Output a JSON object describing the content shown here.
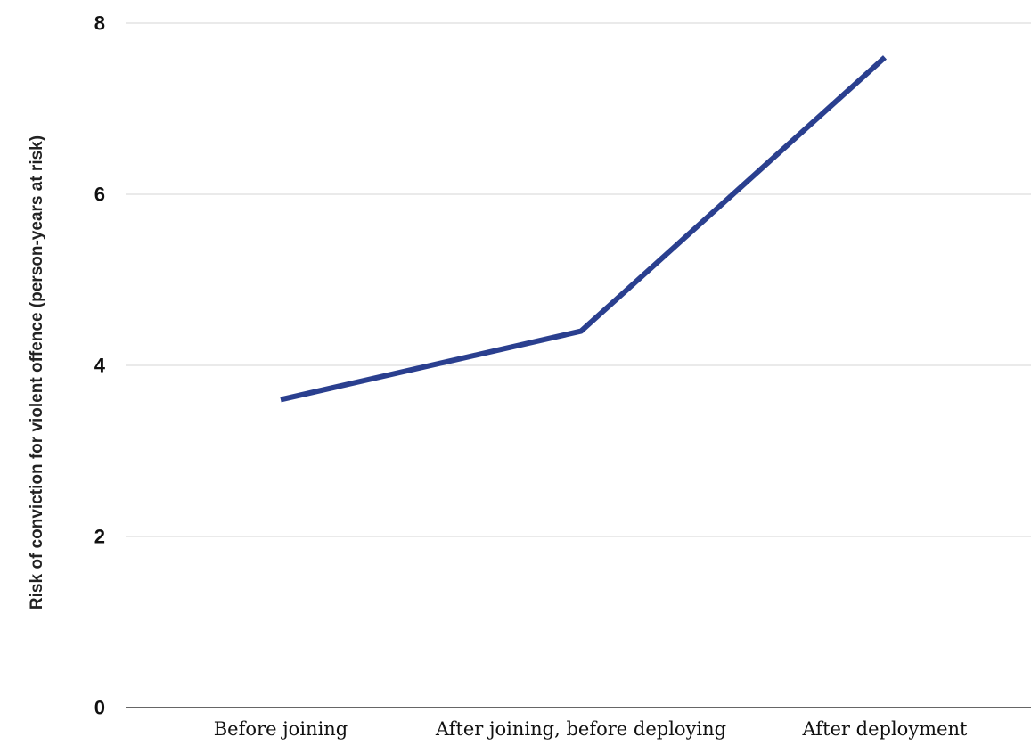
{
  "chart_data": {
    "type": "line",
    "title": "",
    "xlabel": "",
    "ylabel": "Risk of conviction for violent offence (person-years at risk)",
    "categories": [
      "Before joining",
      "After joining, before deploying",
      "After deployment"
    ],
    "series": [
      {
        "values": [
          3.6,
          4.4,
          7.6
        ],
        "color": "#2a3f8f"
      }
    ],
    "ylim": [
      0,
      8
    ],
    "yticks": [
      0,
      2,
      4,
      6,
      8
    ],
    "grid": true,
    "legend": "none"
  }
}
